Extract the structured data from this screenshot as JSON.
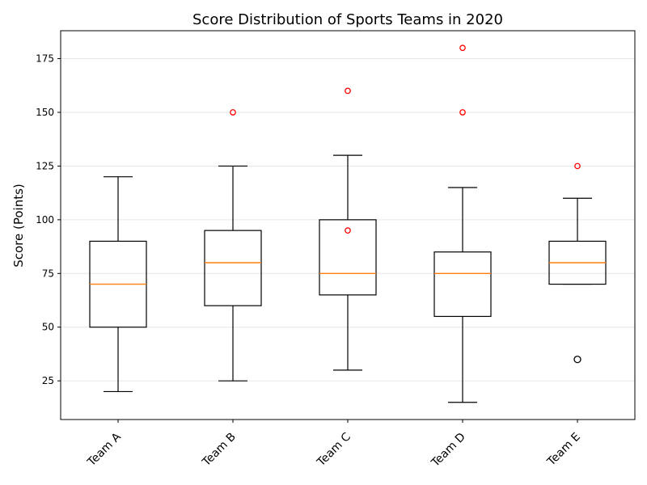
{
  "chart_data": {
    "type": "box",
    "title": "Score Distribution of Sports Teams in 2020",
    "xlabel": "",
    "ylabel": "Score (Points)",
    "ylim": [
      7,
      188
    ],
    "yticks": [
      25,
      50,
      75,
      100,
      125,
      150,
      175
    ],
    "grid": "horizontal",
    "categories": [
      "Team A",
      "Team B",
      "Team C",
      "Team D",
      "Team E"
    ],
    "boxes": [
      {
        "category": "Team A",
        "whisker_low": 20,
        "q1": 50,
        "median": 70,
        "q3": 90,
        "whisker_high": 120,
        "outliers_red": [],
        "outliers_black": []
      },
      {
        "category": "Team B",
        "whisker_low": 25,
        "q1": 60,
        "median": 80,
        "q3": 95,
        "whisker_high": 125,
        "outliers_red": [
          150
        ],
        "outliers_black": []
      },
      {
        "category": "Team C",
        "whisker_low": 30,
        "q1": 65,
        "median": 75,
        "q3": 100,
        "whisker_high": 130,
        "outliers_red": [
          95,
          160
        ],
        "outliers_black": []
      },
      {
        "category": "Team D",
        "whisker_low": 15,
        "q1": 55,
        "median": 75,
        "q3": 85,
        "whisker_high": 115,
        "outliers_red": [
          150,
          180
        ],
        "outliers_black": []
      },
      {
        "category": "Team E",
        "whisker_low": 70,
        "q1": 70,
        "median": 80,
        "q3": 90,
        "whisker_high": 110,
        "outliers_red": [
          125
        ],
        "outliers_black": [
          35
        ]
      }
    ],
    "colors": {
      "box": "#000000",
      "median": "#ff7f0e",
      "outlier_red": "#ff0000",
      "outlier_black": "#000000",
      "grid": "#e6e6e6"
    }
  }
}
